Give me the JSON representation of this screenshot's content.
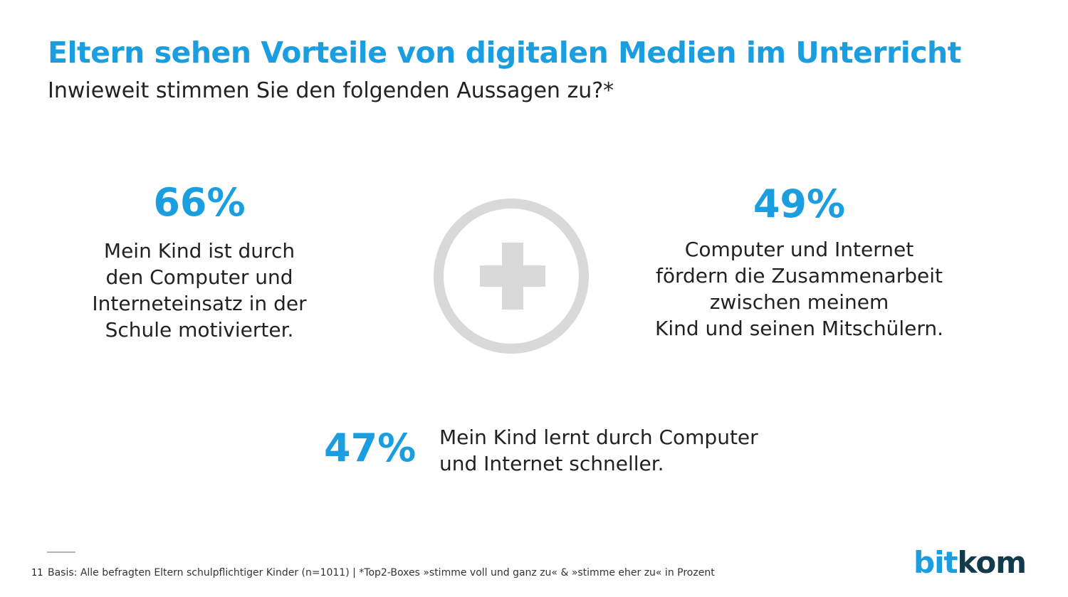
{
  "header": {
    "title": "Eltern sehen Vorteile von digitalen Medien im Unterricht",
    "subtitle": "Inwieweit stimmen Sie den folgenden Aussagen zu?*"
  },
  "stats": [
    {
      "percent": "66%",
      "lines": [
        "Mein Kind ist durch",
        "den Computer und",
        "Interneteinsatz in der",
        "Schule motivierter."
      ]
    },
    {
      "percent": "49%",
      "lines": [
        "Computer und Internet",
        "fördern die Zusammenarbeit",
        "zwischen meinem",
        "Kind und seinen Mitschülern."
      ]
    },
    {
      "percent": "47%",
      "lines": [
        "Mein Kind lernt durch Computer",
        "und Internet schneller."
      ]
    }
  ],
  "icons": {
    "center": "plus-circle-icon"
  },
  "colors": {
    "accent": "#1a9ee0",
    "icon_gray": "#d9d9d9",
    "logo_dark": "#123a4a"
  },
  "footer": {
    "page_number": "11",
    "note": "Basis: Alle befragten Eltern schulpflichtiger Kinder (n=1011) | *Top2-Boxes »stimme voll und ganz zu« & »stimme eher zu« in Prozent",
    "logo_part1": "bit",
    "logo_part2": "kom"
  }
}
